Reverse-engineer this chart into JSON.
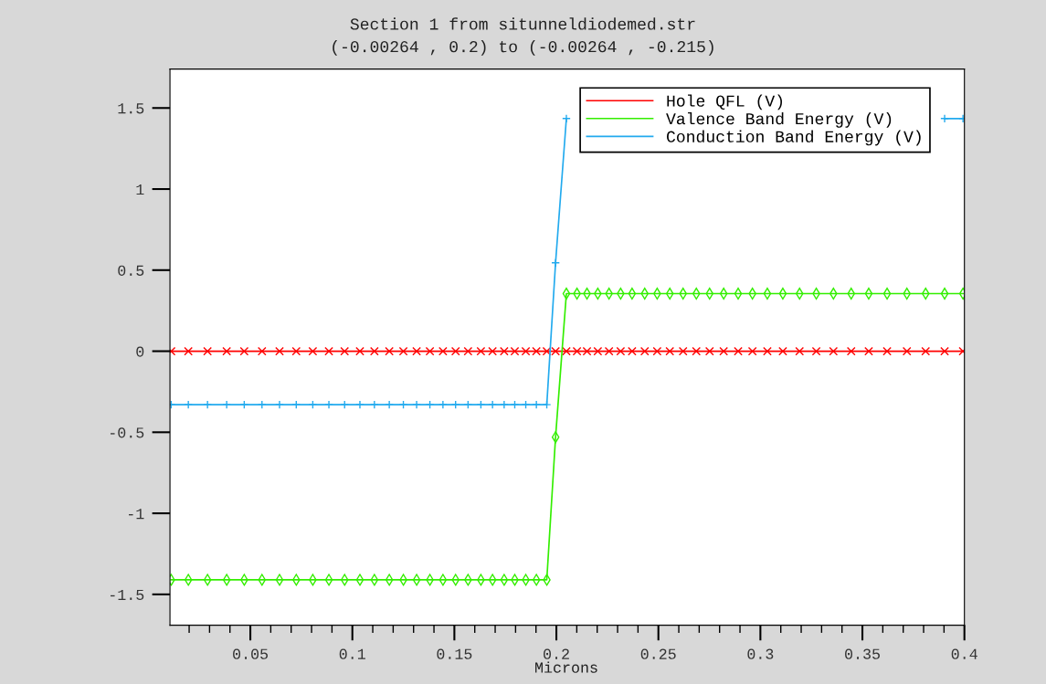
{
  "chart_data": {
    "type": "line",
    "title": "Section 1 from situnneldiodemed.str",
    "subtitle": "(-0.00264 , 0.2) to (-0.00264 , -0.215)",
    "xlabel": "Microns",
    "x": [
      0.0112,
      0.0196,
      0.029,
      0.0384,
      0.047,
      0.0557,
      0.0643,
      0.0725,
      0.0806,
      0.0885,
      0.0962,
      0.1037,
      0.1108,
      0.1181,
      0.125,
      0.1315,
      0.138,
      0.1444,
      0.1506,
      0.1567,
      0.163,
      0.1687,
      0.1744,
      0.1796,
      0.185,
      0.1902,
      0.1953,
      0.1996,
      0.2049,
      0.2101,
      0.215,
      0.2203,
      0.2258,
      0.2315,
      0.2371,
      0.2433,
      0.2494,
      0.2556,
      0.2621,
      0.2686,
      0.2751,
      0.282,
      0.2891,
      0.2961,
      0.3034,
      0.311,
      0.3192,
      0.3274,
      0.3358,
      0.3445,
      0.3531,
      0.3621,
      0.3718,
      0.381,
      0.3903,
      0.3993
    ],
    "series": [
      {
        "name": "Hole QFL (V)",
        "color": "#ff0000",
        "marker": "cross",
        "values": [
          0,
          0,
          0,
          0,
          0,
          0,
          0,
          0,
          0,
          0,
          0,
          0,
          0,
          0,
          0,
          0,
          0,
          0,
          0,
          0,
          0,
          0,
          0,
          0,
          0,
          0,
          0,
          0,
          0,
          0,
          0,
          0,
          0,
          0,
          0,
          0,
          0,
          0,
          0,
          0,
          0,
          0,
          0,
          0,
          0,
          0,
          0,
          0,
          0,
          0,
          0,
          0,
          0,
          0,
          0,
          0
        ]
      },
      {
        "name": "Valence Band Energy (V)",
        "color": "#33ee00",
        "marker": "diamond",
        "values": [
          -1.41,
          -1.41,
          -1.41,
          -1.41,
          -1.41,
          -1.41,
          -1.41,
          -1.41,
          -1.41,
          -1.41,
          -1.41,
          -1.41,
          -1.41,
          -1.41,
          -1.41,
          -1.41,
          -1.41,
          -1.41,
          -1.41,
          -1.41,
          -1.41,
          -1.41,
          -1.41,
          -1.41,
          -1.41,
          -1.41,
          -1.41,
          -0.53,
          0.355,
          0.355,
          0.355,
          0.355,
          0.355,
          0.355,
          0.355,
          0.355,
          0.355,
          0.355,
          0.355,
          0.355,
          0.355,
          0.355,
          0.355,
          0.355,
          0.355,
          0.355,
          0.355,
          0.355,
          0.355,
          0.355,
          0.355,
          0.355,
          0.355,
          0.355,
          0.355,
          0.355
        ]
      },
      {
        "name": "Conduction Band Energy (V)",
        "color": "#22aaee",
        "marker": "plus",
        "values": [
          -0.33,
          -0.33,
          -0.33,
          -0.33,
          -0.33,
          -0.33,
          -0.33,
          -0.33,
          -0.33,
          -0.33,
          -0.33,
          -0.33,
          -0.33,
          -0.33,
          -0.33,
          -0.33,
          -0.33,
          -0.33,
          -0.33,
          -0.33,
          -0.33,
          -0.33,
          -0.33,
          -0.33,
          -0.33,
          -0.33,
          -0.33,
          0.545,
          1.435,
          null,
          null,
          null,
          null,
          null,
          null,
          null,
          null,
          null,
          null,
          null,
          null,
          null,
          null,
          null,
          null,
          null,
          null,
          null,
          null,
          null,
          null,
          null,
          null,
          null,
          1.435,
          1.435
        ]
      }
    ],
    "xlim": [
      0.0106,
      0.4
    ],
    "xticks": [
      0.05,
      0.1,
      0.15,
      0.2,
      0.25,
      0.3,
      0.35,
      0.4
    ],
    "ylim": [
      -1.69,
      1.74
    ],
    "yticks": [
      -1.5,
      -1,
      -0.5,
      0,
      0.5,
      1,
      1.5
    ],
    "grid": false,
    "legend": "top right"
  }
}
